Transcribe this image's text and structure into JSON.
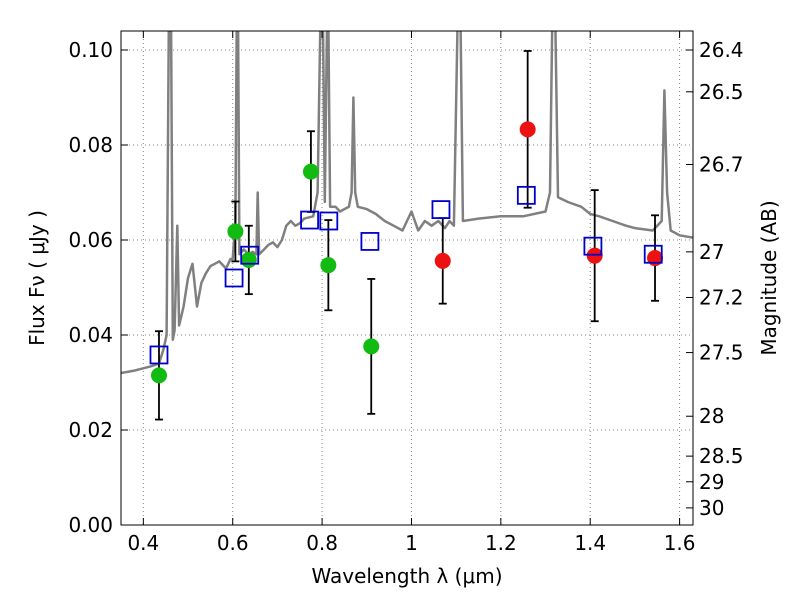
{
  "chart_data": {
    "type": "scatter",
    "xlabel": "Wavelength  λ (μm)",
    "ylabel": "Flux  Fν  ( μJy )",
    "y2label": "Magnitude (AB)",
    "xlim": [
      0.35,
      1.63
    ],
    "ylim": [
      0.0,
      0.104
    ],
    "grid": true,
    "x_ticks": [
      0.4,
      0.6,
      0.8,
      1.0,
      1.2,
      1.4,
      1.6
    ],
    "x_tick_labels": [
      "0.4",
      "0.6",
      "0.8",
      "1",
      "1.2",
      "1.4",
      "1.6"
    ],
    "y_ticks": [
      0.0,
      0.02,
      0.04,
      0.06,
      0.08,
      0.1
    ],
    "y_tick_labels": [
      "0.00",
      "0.02",
      "0.04",
      "0.06",
      "0.08",
      "0.10"
    ],
    "y2_ticks": [
      {
        "label": "26.4",
        "flux": 0.1
      },
      {
        "label": "26.5",
        "flux": 0.0912
      },
      {
        "label": "26.7",
        "flux": 0.0759
      },
      {
        "label": "27",
        "flux": 0.0575
      },
      {
        "label": "27.2",
        "flux": 0.0479
      },
      {
        "label": "27.5",
        "flux": 0.0363
      },
      {
        "label": "28",
        "flux": 0.0229
      },
      {
        "label": "28.5",
        "flux": 0.0145
      },
      {
        "label": "29",
        "flux": 0.0091
      },
      {
        "label": "30",
        "flux": 0.0036
      }
    ],
    "colors": {
      "model": "#808080",
      "green": "#11bb11",
      "red": "#ee1111",
      "square": "#0000cc",
      "errorbar": "#000000",
      "grid": "#888888"
    },
    "series": [
      {
        "marker": "circle",
        "color": "green",
        "points": [
          {
            "x": 0.435,
            "y": 0.0315,
            "err": 0.0093
          },
          {
            "x": 0.606,
            "y": 0.0618,
            "err": 0.0063
          },
          {
            "x": 0.636,
            "y": 0.0558,
            "err": 0.0072
          },
          {
            "x": 0.775,
            "y": 0.0744,
            "err": 0.0085
          },
          {
            "x": 0.814,
            "y": 0.0547,
            "err": 0.0095
          },
          {
            "x": 0.91,
            "y": 0.0376,
            "err": 0.0142
          }
        ]
      },
      {
        "marker": "circle",
        "color": "red",
        "points": [
          {
            "x": 1.07,
            "y": 0.0556,
            "err": 0.009
          },
          {
            "x": 1.26,
            "y": 0.0833,
            "err": 0.0165
          },
          {
            "x": 1.41,
            "y": 0.0567,
            "err": 0.0138
          },
          {
            "x": 1.545,
            "y": 0.0562,
            "err": 0.009
          }
        ]
      },
      {
        "marker": "square",
        "color": "square",
        "points": [
          {
            "x": 0.435,
            "y": 0.0358
          },
          {
            "x": 0.603,
            "y": 0.052
          },
          {
            "x": 0.638,
            "y": 0.0568
          },
          {
            "x": 0.772,
            "y": 0.0642
          },
          {
            "x": 0.815,
            "y": 0.064
          },
          {
            "x": 0.907,
            "y": 0.0597
          },
          {
            "x": 1.066,
            "y": 0.0664
          },
          {
            "x": 1.257,
            "y": 0.0694
          },
          {
            "x": 1.406,
            "y": 0.0587
          },
          {
            "x": 1.541,
            "y": 0.057
          }
        ]
      }
    ],
    "model_spectrum": [
      [
        0.35,
        0.032
      ],
      [
        0.38,
        0.0325
      ],
      [
        0.4,
        0.033
      ],
      [
        0.42,
        0.0335
      ],
      [
        0.435,
        0.034
      ],
      [
        0.445,
        0.037
      ],
      [
        0.452,
        0.04
      ],
      [
        0.457,
        0.105
      ],
      [
        0.462,
        0.105
      ],
      [
        0.466,
        0.039
      ],
      [
        0.47,
        0.041
      ],
      [
        0.476,
        0.063
      ],
      [
        0.48,
        0.042
      ],
      [
        0.49,
        0.046
      ],
      [
        0.5,
        0.052
      ],
      [
        0.51,
        0.055
      ],
      [
        0.52,
        0.046
      ],
      [
        0.53,
        0.051
      ],
      [
        0.54,
        0.053
      ],
      [
        0.55,
        0.0545
      ],
      [
        0.56,
        0.055
      ],
      [
        0.57,
        0.0555
      ],
      [
        0.585,
        0.054
      ],
      [
        0.595,
        0.056
      ],
      [
        0.6,
        0.056
      ],
      [
        0.606,
        0.064
      ],
      [
        0.609,
        0.105
      ],
      [
        0.612,
        0.105
      ],
      [
        0.615,
        0.057
      ],
      [
        0.625,
        0.058
      ],
      [
        0.635,
        0.057
      ],
      [
        0.645,
        0.0575
      ],
      [
        0.653,
        0.057
      ],
      [
        0.656,
        0.07
      ],
      [
        0.659,
        0.057
      ],
      [
        0.67,
        0.058
      ],
      [
        0.68,
        0.059
      ],
      [
        0.69,
        0.0595
      ],
      [
        0.7,
        0.0585
      ],
      [
        0.71,
        0.06
      ],
      [
        0.72,
        0.063
      ],
      [
        0.73,
        0.064
      ],
      [
        0.74,
        0.063
      ],
      [
        0.75,
        0.0635
      ],
      [
        0.76,
        0.0645
      ],
      [
        0.78,
        0.065
      ],
      [
        0.79,
        0.07
      ],
      [
        0.796,
        0.105
      ],
      [
        0.802,
        0.105
      ],
      [
        0.806,
        0.068
      ],
      [
        0.811,
        0.105
      ],
      [
        0.814,
        0.105
      ],
      [
        0.818,
        0.067
      ],
      [
        0.83,
        0.067
      ],
      [
        0.84,
        0.066
      ],
      [
        0.85,
        0.0665
      ],
      [
        0.86,
        0.067
      ],
      [
        0.866,
        0.07
      ],
      [
        0.87,
        0.09
      ],
      [
        0.874,
        0.07
      ],
      [
        0.88,
        0.067
      ],
      [
        0.9,
        0.0665
      ],
      [
        0.92,
        0.0655
      ],
      [
        0.94,
        0.064
      ],
      [
        0.96,
        0.063
      ],
      [
        0.98,
        0.062
      ],
      [
        1.0,
        0.066
      ],
      [
        1.015,
        0.062
      ],
      [
        1.03,
        0.064
      ],
      [
        1.045,
        0.063
      ],
      [
        1.06,
        0.064
      ],
      [
        1.075,
        0.0625
      ],
      [
        1.085,
        0.064
      ],
      [
        1.095,
        0.063
      ],
      [
        1.103,
        0.105
      ],
      [
        1.11,
        0.105
      ],
      [
        1.115,
        0.064
      ],
      [
        1.15,
        0.0645
      ],
      [
        1.2,
        0.065
      ],
      [
        1.25,
        0.065
      ],
      [
        1.3,
        0.066
      ],
      [
        1.31,
        0.07
      ],
      [
        1.315,
        0.105
      ],
      [
        1.322,
        0.105
      ],
      [
        1.328,
        0.069
      ],
      [
        1.35,
        0.068
      ],
      [
        1.38,
        0.067
      ],
      [
        1.4,
        0.0655
      ],
      [
        1.42,
        0.065
      ],
      [
        1.45,
        0.064
      ],
      [
        1.48,
        0.063
      ],
      [
        1.5,
        0.0625
      ],
      [
        1.54,
        0.062
      ],
      [
        1.56,
        0.064
      ],
      [
        1.566,
        0.0915
      ],
      [
        1.572,
        0.07
      ],
      [
        1.58,
        0.062
      ],
      [
        1.6,
        0.061
      ],
      [
        1.63,
        0.0605
      ]
    ]
  }
}
